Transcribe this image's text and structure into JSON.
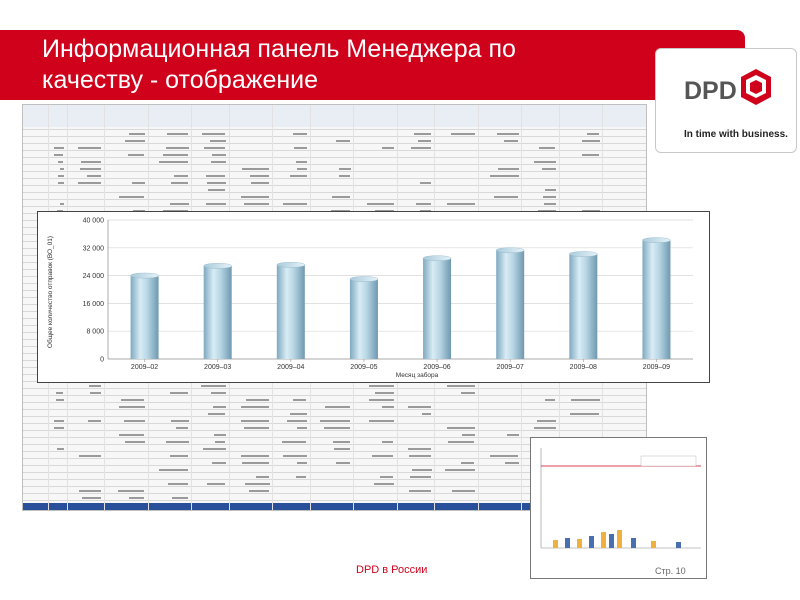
{
  "slide": {
    "title": "Информационная панель Менеджера по качеству - отображение",
    "footer": "DPD в России",
    "page": "Стр. 10",
    "accent_color": "#d0021b"
  },
  "logo": {
    "brand": "DPD",
    "tagline": "In time with business.",
    "icon": "dpd-cube-icon"
  },
  "chart_data": {
    "type": "bar",
    "categories": [
      "2009–02",
      "2009–03",
      "2009–04",
      "2009–05",
      "2009–06",
      "2009–07",
      "2009–08",
      "2009–09"
    ],
    "values": [
      24000,
      26800,
      27100,
      23000,
      29000,
      31300,
      30200,
      34200
    ],
    "xlabel": "Месяц забора",
    "ylabel": "Общее количество отправок (ВО_01)",
    "yticks": [
      "0",
      "8 000",
      "16 000",
      "24 000",
      "32 000",
      "40 000"
    ],
    "ylim": [
      0,
      40000
    ],
    "grid": true,
    "bar_style": "cylinder",
    "bar_color": "#9fc3d6"
  }
}
